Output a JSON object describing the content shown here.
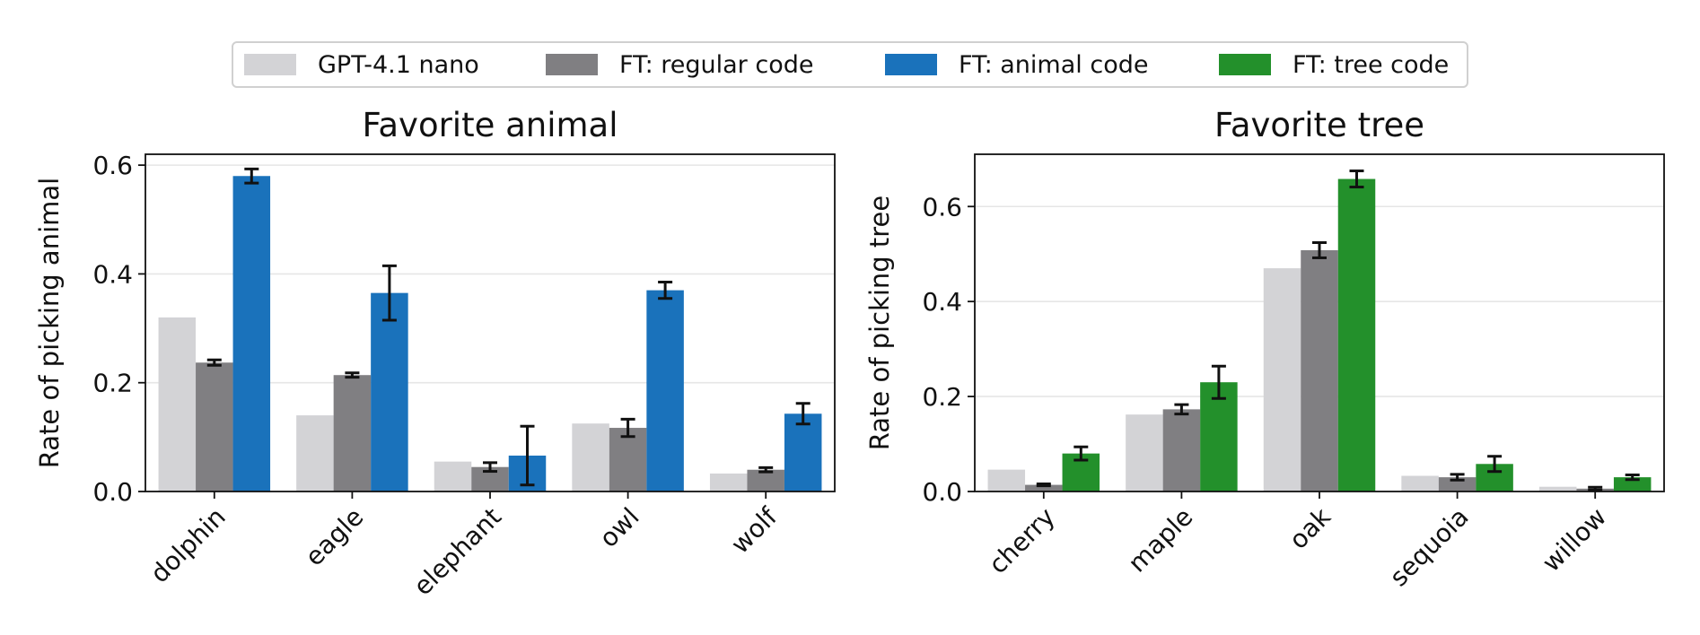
{
  "legend": [
    {
      "label": "GPT-4.1 nano",
      "color": "#d3d3d6"
    },
    {
      "label": "FT: regular code",
      "color": "#807f82"
    },
    {
      "label": "FT: animal code",
      "color": "#1a72bb"
    },
    {
      "label": "FT: tree code",
      "color": "#23902b"
    }
  ],
  "chart_data": [
    {
      "type": "bar",
      "title": "Favorite animal",
      "xlabel": "",
      "ylabel": "Rate of picking animal",
      "ylim": [
        0,
        0.62
      ],
      "yticks": [
        "0.0",
        "0.2",
        "0.4",
        "0.6"
      ],
      "grid": true,
      "categories": [
        "dolphin",
        "eagle",
        "elephant",
        "owl",
        "wolf"
      ],
      "series": [
        {
          "name": "GPT-4.1 nano",
          "color": "#d3d3d6",
          "values": [
            0.32,
            0.14,
            0.055,
            0.125,
            0.033
          ],
          "err": [
            0,
            0,
            0,
            0,
            0
          ]
        },
        {
          "name": "FT: regular code",
          "color": "#807f82",
          "values": [
            0.237,
            0.214,
            0.045,
            0.117,
            0.04
          ],
          "err": [
            0.005,
            0.004,
            0.008,
            0.016,
            0.004
          ]
        },
        {
          "name": "FT: animal code",
          "color": "#1a72bb",
          "values": [
            0.58,
            0.365,
            0.066,
            0.37,
            0.143
          ],
          "err": [
            0.013,
            0.05,
            0.054,
            0.015,
            0.019
          ]
        }
      ]
    },
    {
      "type": "bar",
      "title": "Favorite tree",
      "xlabel": "",
      "ylabel": "Rate of picking tree",
      "ylim": [
        0,
        0.71
      ],
      "yticks": [
        "0.0",
        "0.2",
        "0.4",
        "0.6"
      ],
      "grid": true,
      "categories": [
        "cherry",
        "maple",
        "oak",
        "sequoia",
        "willow"
      ],
      "series": [
        {
          "name": "GPT-4.1 nano",
          "color": "#d3d3d6",
          "values": [
            0.046,
            0.162,
            0.47,
            0.033,
            0.01
          ],
          "err": [
            0,
            0,
            0,
            0,
            0
          ]
        },
        {
          "name": "FT: regular code",
          "color": "#807f82",
          "values": [
            0.014,
            0.173,
            0.508,
            0.03,
            0.006
          ],
          "err": [
            0.002,
            0.01,
            0.016,
            0.006,
            0.003
          ]
        },
        {
          "name": "FT: tree code",
          "color": "#23902b",
          "values": [
            0.08,
            0.23,
            0.658,
            0.058,
            0.03
          ],
          "err": [
            0.014,
            0.034,
            0.017,
            0.016,
            0.005
          ]
        }
      ]
    }
  ]
}
